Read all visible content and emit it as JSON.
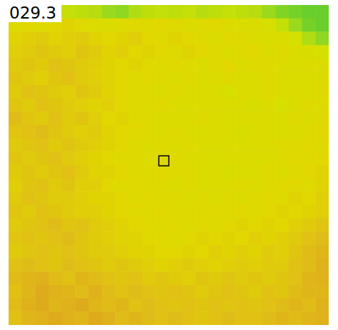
{
  "chart_data": {
    "type": "heatmap",
    "annotation": "029.3",
    "zlim": [
      27.5,
      30.5
    ],
    "tick_labels": false,
    "cells": [
      [
        28.6,
        28.6,
        28.5,
        28.6,
        28.5,
        28.4,
        28.3,
        28.0,
        27.9,
        28.2,
        28.4,
        28.5,
        28.4,
        28.5,
        28.3,
        28.4,
        28.5,
        28.4,
        28.3,
        28.0,
        27.8,
        27.7,
        27.6,
        27.6
      ],
      [
        29.2,
        29.3,
        29.2,
        29.3,
        29.4,
        29.2,
        29.1,
        29.0,
        29.2,
        29.3,
        29.2,
        29.3,
        29.2,
        29.1,
        29.2,
        29.3,
        29.1,
        29.0,
        29.0,
        28.8,
        28.5,
        28.0,
        27.7,
        27.6
      ],
      [
        29.4,
        29.5,
        29.6,
        29.4,
        29.5,
        29.6,
        29.4,
        29.3,
        29.4,
        29.5,
        29.3,
        29.2,
        29.4,
        29.3,
        29.2,
        29.1,
        29.3,
        29.2,
        29.1,
        29.0,
        29.0,
        28.7,
        28.2,
        27.9
      ],
      [
        29.5,
        29.6,
        29.7,
        29.6,
        29.5,
        29.7,
        29.6,
        29.4,
        29.5,
        29.3,
        29.4,
        29.3,
        29.2,
        29.4,
        29.3,
        29.2,
        29.1,
        29.2,
        29.3,
        29.1,
        29.2,
        29.0,
        28.9,
        28.7
      ],
      [
        29.6,
        29.7,
        29.6,
        29.8,
        29.7,
        29.6,
        29.5,
        29.4,
        29.3,
        29.4,
        29.3,
        29.2,
        29.3,
        29.2,
        29.1,
        29.2,
        29.3,
        29.1,
        29.2,
        29.2,
        29.1,
        29.0,
        29.1,
        29.0
      ],
      [
        29.7,
        29.6,
        29.5,
        29.7,
        29.8,
        29.6,
        29.5,
        29.4,
        29.3,
        29.2,
        29.3,
        29.2,
        29.1,
        29.2,
        29.0,
        29.1,
        29.2,
        29.0,
        29.1,
        29.2,
        29.1,
        29.0,
        29.0,
        29.1
      ],
      [
        29.6,
        29.8,
        29.7,
        29.6,
        29.5,
        29.7,
        29.6,
        29.4,
        29.3,
        29.2,
        29.2,
        29.1,
        29.2,
        29.1,
        29.1,
        29.0,
        28.8,
        29.1,
        29.0,
        29.2,
        29.0,
        29.1,
        29.0,
        29.2
      ],
      [
        29.7,
        29.6,
        29.8,
        29.7,
        29.6,
        29.5,
        29.4,
        29.5,
        29.3,
        29.2,
        29.2,
        29.3,
        29.1,
        29.0,
        29.1,
        29.1,
        29.0,
        29.0,
        28.9,
        29.1,
        28.8,
        29.0,
        29.2,
        29.1
      ],
      [
        29.9,
        29.7,
        29.6,
        29.8,
        29.6,
        29.7,
        29.5,
        29.3,
        29.4,
        29.2,
        29.2,
        29.1,
        29.0,
        29.1,
        29.2,
        29.1,
        29.0,
        29.1,
        29.0,
        29.1,
        29.0,
        29.2,
        29.1,
        29.2
      ],
      [
        29.7,
        29.8,
        29.9,
        29.7,
        29.6,
        29.5,
        29.6,
        29.4,
        29.3,
        29.3,
        29.2,
        29.1,
        29.2,
        29.1,
        29.0,
        29.1,
        29.0,
        28.9,
        29.0,
        29.1,
        29.0,
        29.1,
        29.2,
        29.3
      ],
      [
        29.6,
        29.7,
        29.8,
        29.6,
        29.7,
        29.6,
        29.5,
        29.4,
        29.3,
        29.2,
        29.1,
        29.2,
        29.1,
        29.2,
        29.1,
        29.0,
        29.1,
        29.0,
        29.1,
        29.1,
        29.2,
        29.2,
        29.3,
        29.2
      ],
      [
        29.7,
        29.6,
        29.7,
        29.8,
        29.6,
        29.5,
        29.4,
        29.3,
        29.2,
        29.2,
        29.1,
        29.2,
        29.2,
        29.1,
        29.1,
        29.0,
        29.1,
        29.1,
        29.0,
        29.1,
        29.2,
        29.3,
        29.2,
        29.3
      ],
      [
        29.6,
        29.7,
        29.6,
        29.7,
        29.8,
        29.6,
        29.4,
        29.4,
        29.3,
        29.2,
        29.2,
        29.3,
        29.2,
        29.2,
        29.1,
        29.1,
        28.9,
        29.0,
        29.1,
        29.2,
        29.1,
        29.2,
        29.3,
        29.4
      ],
      [
        29.5,
        29.7,
        29.8,
        29.6,
        29.7,
        29.5,
        29.5,
        29.3,
        29.2,
        29.3,
        29.2,
        29.2,
        29.1,
        29.2,
        29.0,
        29.1,
        29.1,
        29.2,
        29.1,
        29.2,
        29.3,
        29.3,
        29.2,
        29.4
      ],
      [
        29.6,
        29.8,
        29.7,
        29.6,
        29.6,
        29.5,
        29.4,
        29.4,
        29.3,
        29.2,
        29.3,
        29.2,
        29.2,
        29.1,
        29.2,
        29.1,
        29.2,
        29.1,
        29.2,
        29.3,
        29.2,
        29.4,
        29.3,
        29.5
      ],
      [
        29.7,
        29.6,
        29.8,
        29.7,
        29.6,
        29.5,
        29.5,
        29.4,
        29.3,
        29.3,
        29.2,
        29.3,
        29.2,
        29.2,
        29.2,
        29.3,
        29.2,
        29.3,
        29.2,
        29.3,
        29.4,
        29.3,
        29.4,
        29.5
      ],
      [
        29.6,
        29.7,
        29.8,
        29.9,
        29.7,
        29.8,
        29.6,
        29.5,
        29.4,
        29.3,
        29.3,
        29.2,
        29.3,
        29.2,
        29.3,
        29.2,
        29.3,
        29.4,
        29.3,
        29.4,
        29.3,
        29.5,
        29.6,
        29.7
      ],
      [
        29.7,
        29.8,
        29.7,
        29.8,
        29.9,
        29.7,
        29.6,
        29.5,
        29.4,
        29.4,
        29.3,
        29.3,
        29.2,
        29.3,
        29.4,
        29.3,
        29.4,
        29.3,
        29.5,
        29.4,
        29.5,
        29.6,
        29.8,
        29.9
      ],
      [
        29.6,
        29.7,
        29.8,
        29.7,
        29.8,
        29.7,
        29.6,
        29.6,
        29.5,
        29.4,
        29.4,
        29.3,
        29.3,
        29.4,
        29.3,
        29.5,
        29.4,
        29.5,
        29.4,
        29.6,
        29.5,
        29.7,
        29.9,
        30.0
      ],
      [
        29.8,
        29.9,
        29.8,
        29.7,
        29.9,
        29.8,
        29.7,
        29.6,
        29.7,
        29.6,
        29.5,
        29.4,
        29.5,
        29.6,
        29.5,
        29.4,
        29.5,
        29.6,
        29.5,
        29.6,
        29.6,
        29.8,
        29.9,
        30.1
      ],
      [
        29.9,
        30.0,
        30.1,
        29.9,
        29.8,
        30.0,
        29.9,
        29.8,
        29.7,
        29.8,
        29.6,
        29.7,
        29.6,
        29.5,
        29.7,
        29.6,
        29.7,
        29.6,
        29.7,
        29.6,
        29.7,
        29.8,
        30.0,
        30.1
      ],
      [
        29.8,
        30.0,
        30.2,
        30.1,
        30.0,
        29.9,
        30.1,
        29.9,
        29.8,
        29.9,
        29.8,
        29.7,
        29.8,
        29.7,
        29.6,
        29.7,
        29.8,
        29.7,
        29.6,
        29.8,
        29.7,
        29.9,
        30.0,
        30.0
      ],
      [
        29.9,
        30.1,
        30.2,
        30.0,
        30.1,
        30.2,
        30.0,
        29.9,
        30.0,
        29.8,
        29.9,
        29.8,
        29.7,
        29.8,
        29.7,
        29.8,
        29.7,
        29.8,
        29.7,
        29.8,
        29.9,
        30.0,
        29.9,
        30.1
      ],
      [
        29.8,
        30.0,
        30.1,
        30.2,
        30.1,
        30.0,
        30.2,
        30.1,
        29.9,
        30.0,
        29.9,
        29.8,
        29.9,
        29.8,
        29.7,
        29.8,
        29.9,
        29.8,
        29.8,
        29.9,
        30.0,
        29.9,
        30.0,
        30.1
      ]
    ]
  }
}
